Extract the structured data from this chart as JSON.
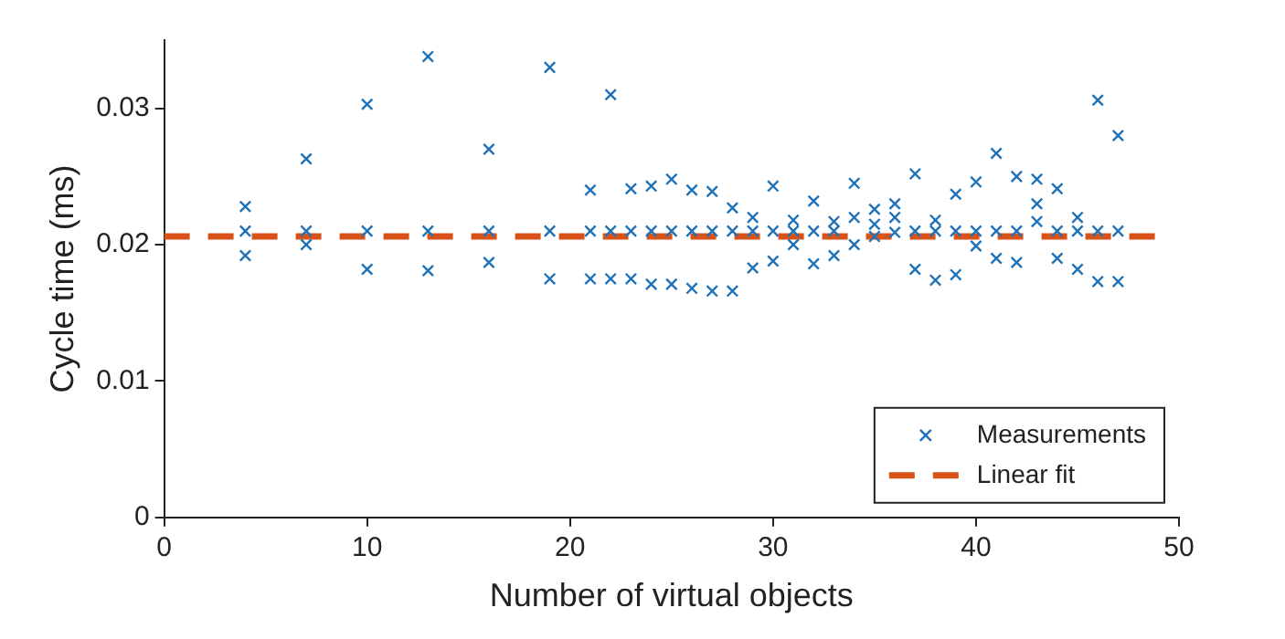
{
  "chart_data": {
    "type": "scatter",
    "xlabel": "Number of virtual objects",
    "ylabel": "Cycle time (ms)",
    "xlim": [
      0,
      50
    ],
    "xticks": [
      0,
      10,
      20,
      30,
      40,
      50
    ],
    "ylim": [
      0,
      0.035
    ],
    "yticks": [
      0,
      0.01,
      0.02,
      0.03
    ],
    "legend": "bottom right",
    "series": [
      {
        "name": "Measurements",
        "type": "scatter",
        "marker": "cross",
        "color": "#1f72b8",
        "x": [
          4,
          4,
          4,
          7,
          7,
          7,
          10,
          10,
          10,
          13,
          13,
          13,
          16,
          16,
          16,
          19,
          19,
          19,
          21,
          21,
          21,
          22,
          22,
          22,
          23,
          23,
          23,
          24,
          24,
          24,
          25,
          25,
          25,
          26,
          26,
          26,
          27,
          27,
          27,
          28,
          28,
          28,
          29,
          29,
          29,
          30,
          30,
          30,
          31,
          31,
          31,
          32,
          32,
          32,
          33,
          33,
          33,
          34,
          34,
          34,
          35,
          35,
          35,
          36,
          36,
          36,
          37,
          37,
          37,
          38,
          38,
          38,
          39,
          39,
          39,
          40,
          40,
          40,
          41,
          41,
          41,
          42,
          42,
          42,
          43,
          43,
          43,
          44,
          44,
          44,
          45,
          45,
          45,
          46,
          46,
          46,
          47,
          47,
          47
        ],
        "values": [
          0.0228,
          0.021,
          0.0192,
          0.0263,
          0.021,
          0.02,
          0.0303,
          0.021,
          0.0182,
          0.0338,
          0.021,
          0.0181,
          0.027,
          0.021,
          0.0187,
          0.033,
          0.021,
          0.0175,
          0.024,
          0.021,
          0.0175,
          0.031,
          0.021,
          0.0175,
          0.0241,
          0.021,
          0.0175,
          0.0243,
          0.021,
          0.0171,
          0.0248,
          0.021,
          0.0171,
          0.024,
          0.021,
          0.0168,
          0.0239,
          0.021,
          0.0166,
          0.0227,
          0.021,
          0.0166,
          0.022,
          0.021,
          0.0183,
          0.0243,
          0.021,
          0.0188,
          0.0218,
          0.021,
          0.02,
          0.0232,
          0.021,
          0.0186,
          0.0217,
          0.021,
          0.0192,
          0.0245,
          0.022,
          0.02,
          0.0226,
          0.0215,
          0.0206,
          0.023,
          0.022,
          0.0209,
          0.0252,
          0.021,
          0.0182,
          0.0218,
          0.021,
          0.0174,
          0.0237,
          0.021,
          0.0178,
          0.0246,
          0.021,
          0.0199,
          0.0267,
          0.021,
          0.019,
          0.025,
          0.021,
          0.0187,
          0.0248,
          0.023,
          0.0217,
          0.0241,
          0.021,
          0.019,
          0.022,
          0.021,
          0.0182,
          0.0306,
          0.021,
          0.0173,
          0.028,
          0.021,
          0.0173
        ]
      },
      {
        "name": "Linear fit",
        "type": "line",
        "marker": "none",
        "line_style": "dashed",
        "color": "#d95319",
        "x": [
          0,
          49
        ],
        "values": [
          0.0206,
          0.0206
        ]
      }
    ]
  }
}
